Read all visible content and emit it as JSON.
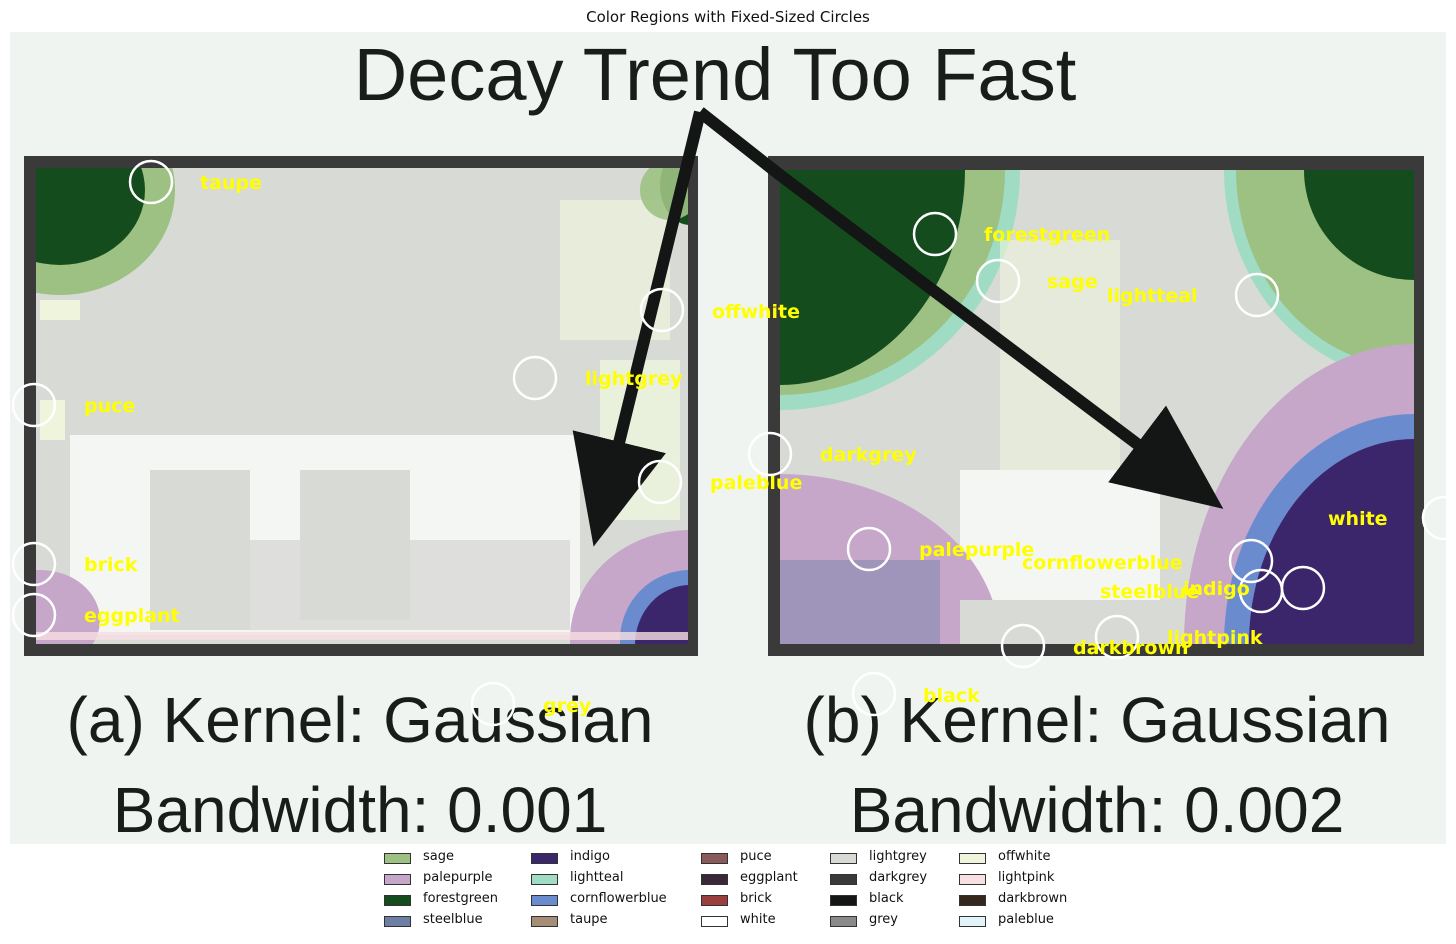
{
  "title": "Color Regions with Fixed-Sized Circles",
  "image": {
    "heading": "Decay Trend Too Fast",
    "panels": [
      {
        "caption_line1": "(a) Kernel: Gaussian",
        "caption_line2": "Bandwidth: 0.001"
      },
      {
        "caption_line1": "(b) Kernel: Gaussian",
        "caption_line2": "Bandwidth: 0.002"
      }
    ]
  },
  "annotations": [
    {
      "label": "taupe"
    },
    {
      "label": "offwhite"
    },
    {
      "label": "lightgrey"
    },
    {
      "label": "puce"
    },
    {
      "label": "paleblue"
    },
    {
      "label": "brick"
    },
    {
      "label": "eggplant"
    },
    {
      "label": "grey"
    },
    {
      "label": "forestgreen"
    },
    {
      "label": "sage"
    },
    {
      "label": "lightteal"
    },
    {
      "label": "darkgrey"
    },
    {
      "label": "white"
    },
    {
      "label": "palepurple"
    },
    {
      "label": "cornflowerblue"
    },
    {
      "label": "steelblue"
    },
    {
      "label": "indigo"
    },
    {
      "label": "lightpink"
    },
    {
      "label": "darkbrown"
    },
    {
      "label": "black"
    }
  ],
  "legend": {
    "columns": [
      [
        {
          "label": "sage",
          "color": "#9dc183"
        },
        {
          "label": "palepurple",
          "color": "#c6a6c9"
        },
        {
          "label": "forestgreen",
          "color": "#154c1e"
        },
        {
          "label": "steelblue",
          "color": "#6e7fa6"
        }
      ],
      [
        {
          "label": "indigo",
          "color": "#3b256b"
        },
        {
          "label": "lightteal",
          "color": "#a0dcc3"
        },
        {
          "label": "cornflowerblue",
          "color": "#6b8bcf"
        },
        {
          "label": "taupe",
          "color": "#a58e75"
        }
      ],
      [
        {
          "label": "puce",
          "color": "#8a5a5a"
        },
        {
          "label": "eggplant",
          "color": "#3a2838"
        },
        {
          "label": "brick",
          "color": "#9a3f3f"
        },
        {
          "label": "white",
          "color": "#ffffff"
        }
      ],
      [
        {
          "label": "lightgrey",
          "color": "#d8dad6"
        },
        {
          "label": "darkgrey",
          "color": "#3a3a3a"
        },
        {
          "label": "black",
          "color": "#131614"
        },
        {
          "label": "grey",
          "color": "#8a8a8a"
        }
      ],
      [
        {
          "label": "offwhite",
          "color": "#eef5dc"
        },
        {
          "label": "lightpink",
          "color": "#f7dfe2"
        },
        {
          "label": "darkbrown",
          "color": "#35261e"
        },
        {
          "label": "paleblue",
          "color": "#e0f4fa"
        }
      ]
    ]
  },
  "colors": {
    "label": "#ffff00",
    "circle": "#ffffff",
    "background": "#eff4f0",
    "frame": "#3a3a3a"
  }
}
